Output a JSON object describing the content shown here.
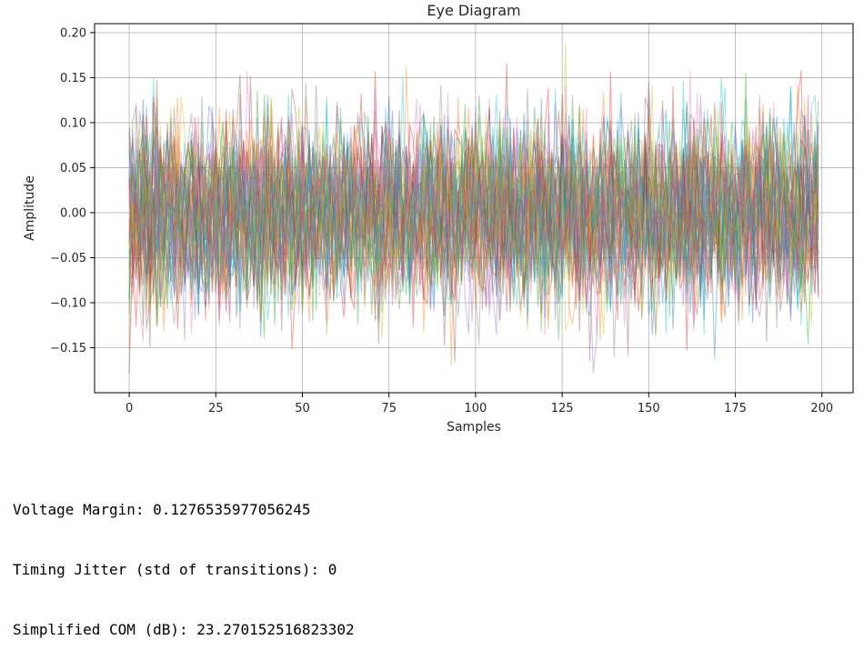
{
  "chart_data": {
    "type": "line",
    "title": "Eye Diagram",
    "xlabel": "Samples",
    "ylabel": "Amplitude",
    "xlim": [
      -10,
      209
    ],
    "ylim": [
      -0.2,
      0.21
    ],
    "xticks": [
      0,
      25,
      50,
      75,
      100,
      125,
      150,
      175,
      200
    ],
    "yticks": [
      -0.15,
      -0.1,
      -0.05,
      0.0,
      0.05,
      0.1,
      0.15,
      0.2
    ],
    "xtick_labels": [
      "0",
      "25",
      "50",
      "75",
      "100",
      "125",
      "150",
      "175",
      "200"
    ],
    "ytick_labels": [
      "−0.15",
      "−0.10",
      "−0.05",
      "0.00",
      "0.05",
      "0.10",
      "0.15",
      "0.20"
    ],
    "grid": true,
    "legend": "none",
    "series_count": 50,
    "samples_per_trace": 200,
    "x_range": [
      0,
      199
    ],
    "amplitude_range": [
      -0.178,
      0.2
    ],
    "amplitude_std": 0.05,
    "colors": [
      "#1f77b4",
      "#ff7f0e",
      "#2ca02c",
      "#d62728",
      "#9467bd",
      "#8c564b",
      "#e377c2",
      "#7f7f7f",
      "#bcbd22",
      "#17becf"
    ]
  },
  "output": {
    "lines": [
      "Voltage Margin: 0.1276535977056245",
      "Timing Jitter (std of transitions): 0",
      "Simplified COM (dB): 23.270152516823302"
    ]
  }
}
